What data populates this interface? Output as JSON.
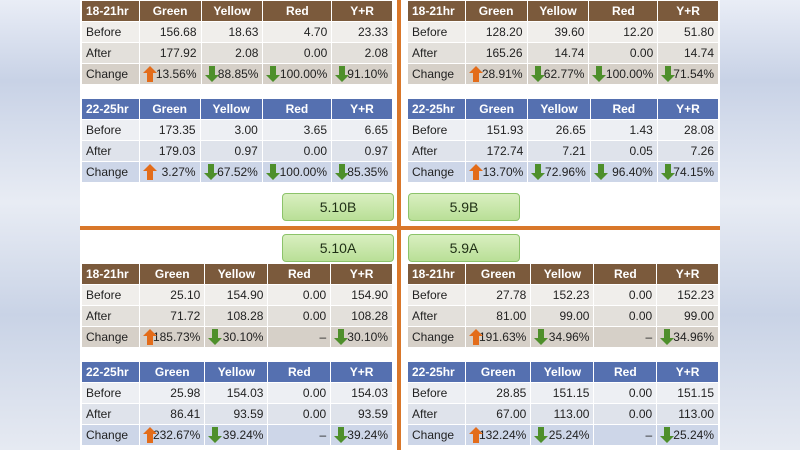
{
  "colors": {
    "up_arrow": "#e36c1a",
    "down_arrow": "#4e8f2b",
    "divider": "#d9772a",
    "header_brown": "#7b5a3c",
    "header_blue": "#5570b0",
    "tag_green": "#c6e6a6"
  },
  "tags": {
    "tl": "5.10B",
    "tr": "5.9B",
    "bl": "5.10A",
    "br": "5.9A"
  },
  "tables": {
    "tl1": {
      "header": [
        "18-21hr",
        "Green",
        "Yellow",
        "Red",
        "Y+R"
      ],
      "before": [
        "Before",
        "156.68",
        "18.63",
        "4.70",
        "23.33"
      ],
      "after": [
        "After",
        "177.92",
        "2.08",
        "0.00",
        "2.08"
      ],
      "change": [
        "Change",
        "13.56%",
        "88.85%",
        "100.00%",
        "91.10%"
      ]
    },
    "tl2": {
      "header": [
        "22-25hr",
        "Green",
        "Yellow",
        "Red",
        "Y+R"
      ],
      "before": [
        "Before",
        "173.35",
        "3.00",
        "3.65",
        "6.65"
      ],
      "after": [
        "After",
        "179.03",
        "0.97",
        "0.00",
        "0.97"
      ],
      "change": [
        "Change",
        "3.27%",
        "67.52%",
        "100.00%",
        "85.35%"
      ]
    },
    "tr1": {
      "header": [
        "18-21hr",
        "Green",
        "Yellow",
        "Red",
        "Y+R"
      ],
      "before": [
        "Before",
        "128.20",
        "39.60",
        "12.20",
        "51.80"
      ],
      "after": [
        "After",
        "165.26",
        "14.74",
        "0.00",
        "14.74"
      ],
      "change": [
        "Change",
        "28.91%",
        "62.77%",
        "100.00%",
        "71.54%"
      ]
    },
    "tr2": {
      "header": [
        "22-25hr",
        "Green",
        "Yellow",
        "Red",
        "Y+R"
      ],
      "before": [
        "Before",
        "151.93",
        "26.65",
        "1.43",
        "28.08"
      ],
      "after": [
        "After",
        "172.74",
        "7.21",
        "0.05",
        "7.26"
      ],
      "change": [
        "Change",
        "13.70%",
        "72.96%",
        "96.40%",
        "74.15%"
      ]
    },
    "bl1": {
      "header": [
        "18-21hr",
        "Green",
        "Yellow",
        "Red",
        "Y+R"
      ],
      "before": [
        "Before",
        "25.10",
        "154.90",
        "0.00",
        "154.90"
      ],
      "after": [
        "After",
        "71.72",
        "108.28",
        "0.00",
        "108.28"
      ],
      "change": [
        "Change",
        "185.73%",
        "30.10%",
        "–",
        "30.10%"
      ]
    },
    "bl2": {
      "header": [
        "22-25hr",
        "Green",
        "Yellow",
        "Red",
        "Y+R"
      ],
      "before": [
        "Before",
        "25.98",
        "154.03",
        "0.00",
        "154.03"
      ],
      "after": [
        "After",
        "86.41",
        "93.59",
        "0.00",
        "93.59"
      ],
      "change": [
        "Change",
        "232.67%",
        "39.24%",
        "–",
        "39.24%"
      ]
    },
    "br1": {
      "header": [
        "18-21hr",
        "Green",
        "Yellow",
        "Red",
        "Y+R"
      ],
      "before": [
        "Before",
        "27.78",
        "152.23",
        "0.00",
        "152.23"
      ],
      "after": [
        "After",
        "81.00",
        "99.00",
        "0.00",
        "99.00"
      ],
      "change": [
        "Change",
        "191.63%",
        "34.96%",
        "–",
        "34.96%"
      ]
    },
    "br2": {
      "header": [
        "22-25hr",
        "Green",
        "Yellow",
        "Red",
        "Y+R"
      ],
      "before": [
        "Before",
        "28.85",
        "151.15",
        "0.00",
        "151.15"
      ],
      "after": [
        "After",
        "67.00",
        "113.00",
        "0.00",
        "113.00"
      ],
      "change": [
        "Change",
        "132.24%",
        "25.24%",
        "–",
        "25.24%"
      ]
    }
  }
}
